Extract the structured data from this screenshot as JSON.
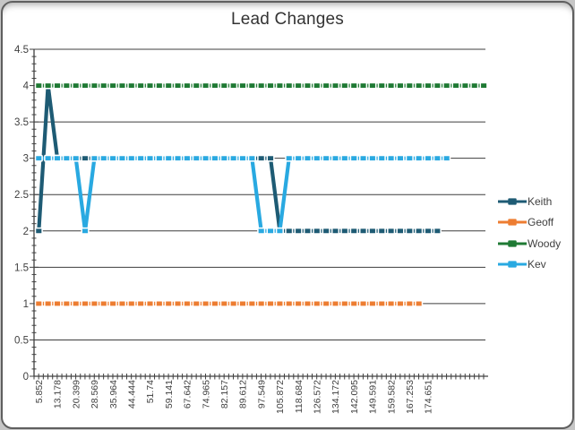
{
  "chart_data": {
    "type": "line",
    "title": "Lead Changes",
    "xlabel": "",
    "ylabel": "",
    "ylim": [
      0,
      4.5
    ],
    "y_tick_step": 0.5,
    "y_minor_step": 0.1,
    "y_tick_labels": [
      "0",
      "0.5",
      "1",
      "1.5",
      "2",
      "2.5",
      "3",
      "3.5",
      "4",
      "4.5"
    ],
    "grid": "horizontal major gridlines on",
    "legend_position": "right",
    "n_categories": 49,
    "x_label_interval": 2,
    "x_tick_labels": [
      "5.852",
      "13.178",
      "20.399",
      "28.569",
      "35.964",
      "44.444",
      "51.74",
      "59.141",
      "67.642",
      "74.965",
      "82.157",
      "89.612",
      "97.549",
      "105.872",
      "118.684",
      "126.572",
      "134.172",
      "142.095",
      "149.591",
      "159.582",
      "167.253",
      "174.651"
    ],
    "series": [
      {
        "name": "Keith",
        "color": "#1E5B74",
        "values": [
          2,
          4,
          3,
          3,
          3,
          3,
          3,
          3,
          3,
          3,
          3,
          3,
          3,
          3,
          3,
          3,
          3,
          3,
          3,
          3,
          3,
          3,
          3,
          3,
          3,
          3,
          2,
          2,
          2,
          2,
          2,
          2,
          2,
          2,
          2,
          2,
          2,
          2,
          2,
          2,
          2,
          2,
          2,
          2
        ]
      },
      {
        "name": "Geoff",
        "color": "#ED7D31",
        "values": [
          1,
          1,
          1,
          1,
          1,
          1,
          1,
          1,
          1,
          1,
          1,
          1,
          1,
          1,
          1,
          1,
          1,
          1,
          1,
          1,
          1,
          1,
          1,
          1,
          1,
          1,
          1,
          1,
          1,
          1,
          1,
          1,
          1,
          1,
          1,
          1,
          1,
          1,
          1,
          1,
          1,
          1
        ]
      },
      {
        "name": "Woody",
        "color": "#1F7A34",
        "values": [
          4,
          4,
          4,
          4,
          4,
          4,
          4,
          4,
          4,
          4,
          4,
          4,
          4,
          4,
          4,
          4,
          4,
          4,
          4,
          4,
          4,
          4,
          4,
          4,
          4,
          4,
          4,
          4,
          4,
          4,
          4,
          4,
          4,
          4,
          4,
          4,
          4,
          4,
          4,
          4,
          4,
          4,
          4,
          4,
          4,
          4,
          4,
          4,
          4
        ]
      },
      {
        "name": "Kev",
        "color": "#29A9E1",
        "values": [
          3,
          3,
          3,
          3,
          3,
          2,
          3,
          3,
          3,
          3,
          3,
          3,
          3,
          3,
          3,
          3,
          3,
          3,
          3,
          3,
          3,
          3,
          3,
          3,
          2,
          2,
          2,
          3,
          3,
          3,
          3,
          3,
          3,
          3,
          3,
          3,
          3,
          3,
          3,
          3,
          3,
          3,
          3,
          3,
          3
        ]
      }
    ],
    "axis_color": "#404040",
    "grid_color": "#3d3d3d",
    "text_color": "#404040"
  }
}
